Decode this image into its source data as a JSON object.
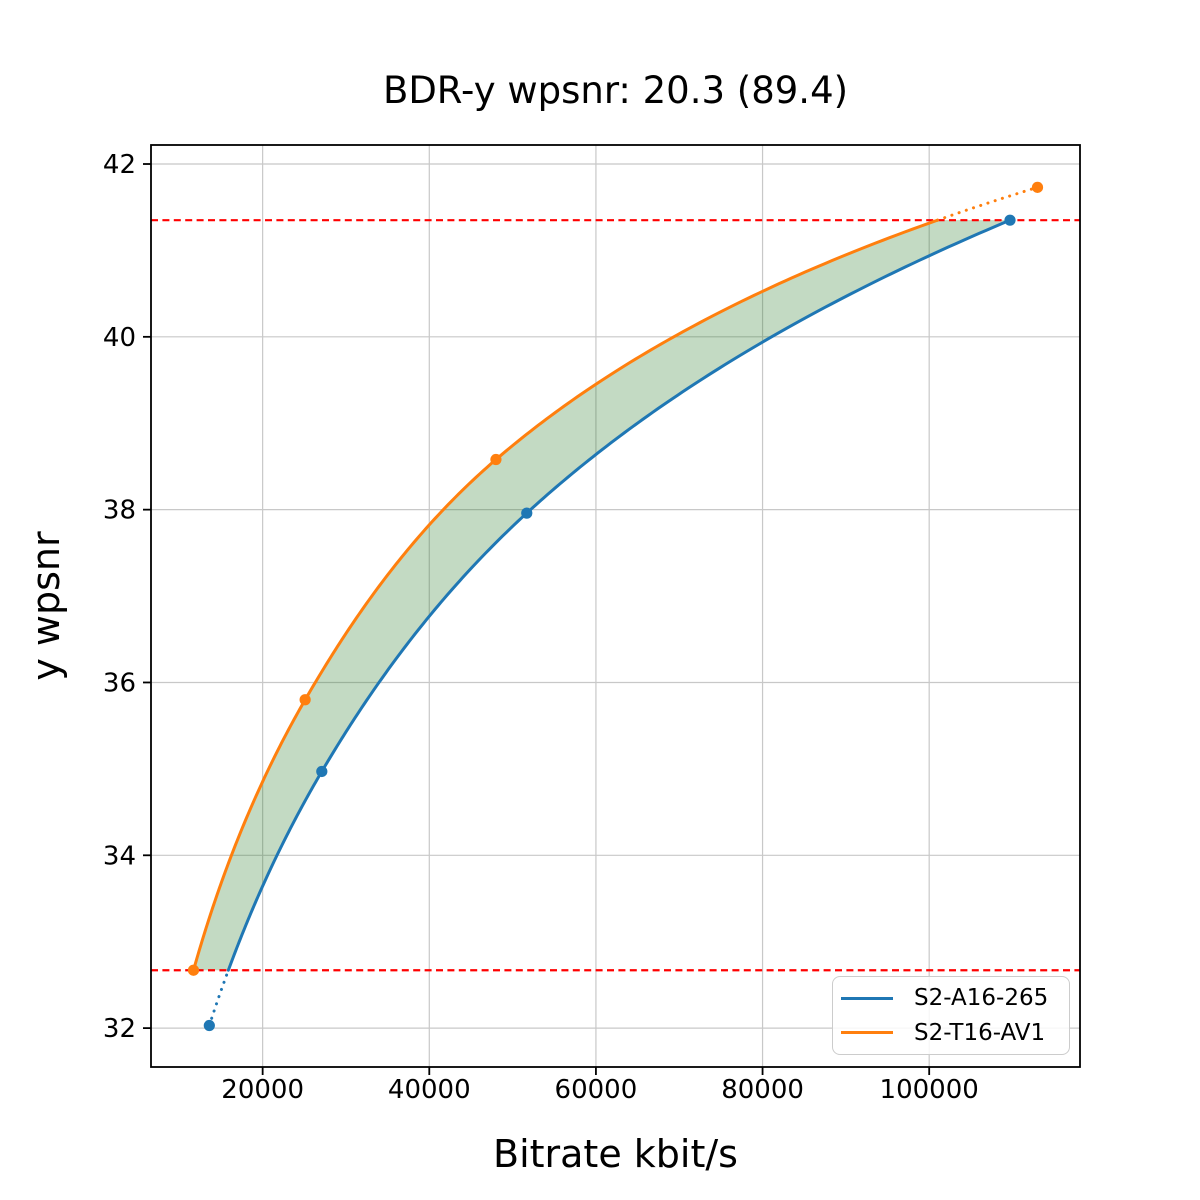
{
  "chart_data": {
    "type": "line",
    "title": "BDR-y wpsnr: 20.3 (89.4)",
    "xlabel": "Bitrate kbit/s",
    "ylabel": "y wpsnr",
    "xlim": [
      6600,
      118100
    ],
    "ylim": [
      31.55,
      42.22
    ],
    "grid": true,
    "legend_position": "lower right",
    "x_ticks": [
      {
        "value": 20000,
        "label": "20000"
      },
      {
        "value": 40000,
        "label": "40000"
      },
      {
        "value": 60000,
        "label": "60000"
      },
      {
        "value": 80000,
        "label": "80000"
      },
      {
        "value": 100000,
        "label": "100000"
      }
    ],
    "y_ticks": [
      {
        "value": 32,
        "label": "32"
      },
      {
        "value": 34,
        "label": "34"
      },
      {
        "value": 36,
        "label": "36"
      },
      {
        "value": 38,
        "label": "38"
      },
      {
        "value": 40,
        "label": "40"
      },
      {
        "value": 42,
        "label": "42"
      }
    ],
    "series": [
      {
        "name": "S2-A16-265",
        "color": "#1f77b4",
        "points": [
          [
            13600,
            32.03
          ],
          [
            27100,
            34.97
          ],
          [
            51700,
            37.96
          ],
          [
            109700,
            41.35
          ]
        ]
      },
      {
        "name": "S2-T16-AV1",
        "color": "#ff7f0e",
        "points": [
          [
            11700,
            32.67
          ],
          [
            25100,
            35.8
          ],
          [
            48000,
            38.58
          ],
          [
            113000,
            41.73
          ]
        ]
      }
    ],
    "ref_lines": {
      "low": 32.67,
      "high": 41.35,
      "color": "#ff0000",
      "style": "dashed"
    },
    "colors": {
      "shade": "rgba(34,119,34,0.27)",
      "grid": "#c8c8c8",
      "spine": "#000000",
      "background": "#ffffff"
    }
  }
}
